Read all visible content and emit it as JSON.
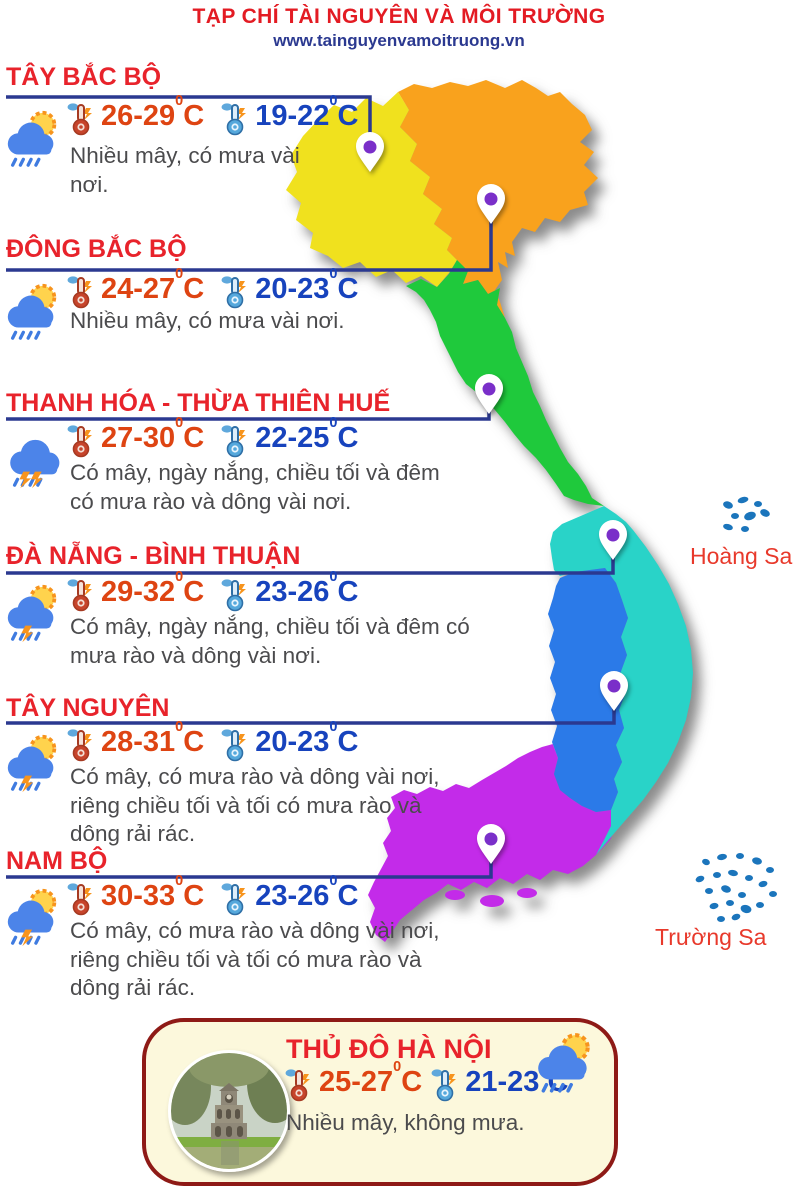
{
  "header": {
    "title": "TẠP CHÍ TÀI NGUYÊN VÀ MÔI TRƯỜNG",
    "website": "www.tainguyenvamoitruong.vn"
  },
  "temps_unit": {
    "degree": "0",
    "unit": "C"
  },
  "regions": [
    {
      "name": "TÂY BẮC BỘ",
      "day_temp": "26-29",
      "night_temp": "19-22",
      "description": "Nhiều mây, có mưa vài nơi.",
      "icon": "sun-cloud-rain"
    },
    {
      "name": "ĐÔNG BẮC BỘ",
      "day_temp": "24-27",
      "night_temp": "20-23",
      "description": "Nhiều mây, có mưa vài nơi.",
      "icon": "sun-cloud-rain"
    },
    {
      "name": "THANH HÓA - THỪA THIÊN HUẾ",
      "day_temp": "27-30",
      "night_temp": "22-25",
      "description": "Có mây, ngày nắng, chiều tối và đêm có mưa rào và dông vài nơi.",
      "icon": "cloud-rain-lightning"
    },
    {
      "name": "ĐÀ NẴNG - BÌNH THUẬN",
      "day_temp": "29-32",
      "night_temp": "23-26",
      "description": "Có mây, ngày nắng, chiều tối và đêm có mưa rào và dông vài nơi.",
      "icon": "sun-cloud-rain-lightning"
    },
    {
      "name": "TÂY NGUYÊN",
      "day_temp": "28-31",
      "night_temp": "20-23",
      "description": "Có mây, có mưa rào và dông vài nơi, riêng chiều tối và tối có mưa rào và dông rải rác.",
      "icon": "sun-cloud-rain-lightning"
    },
    {
      "name": "NAM BỘ",
      "day_temp": "30-33",
      "night_temp": "23-26",
      "description": "Có mây, có mưa rào và dông vài nơi, riêng chiều tối và tối có mưa rào và dông rải rác.",
      "icon": "sun-cloud-rain-lightning"
    }
  ],
  "capital": {
    "name": "THỦ ĐÔ HÀ NỘI",
    "day_temp": "25-27",
    "night_temp": "21-23",
    "description": "Nhiều mây, không mưa.",
    "icon": "sun-cloud-rain",
    "photo": "turtle-tower-hoan-kiem-lake"
  },
  "islands": {
    "hoang_sa": "Hoàng Sa",
    "truong_sa": "Trường Sa"
  },
  "map_colors": {
    "tay_bac_bo": "#f0e11e",
    "dong_bac_bo": "#f9a21d",
    "thanh_hoa_hue": "#1fc93c",
    "da_nang_binh_thuan": "#29d3c8",
    "tay_nguyen": "#2b7ae8",
    "nam_bo": "#c32be9",
    "islands": "#1b75bc",
    "connector": "#2b3990",
    "pin_dot": "#7a2fc9"
  }
}
